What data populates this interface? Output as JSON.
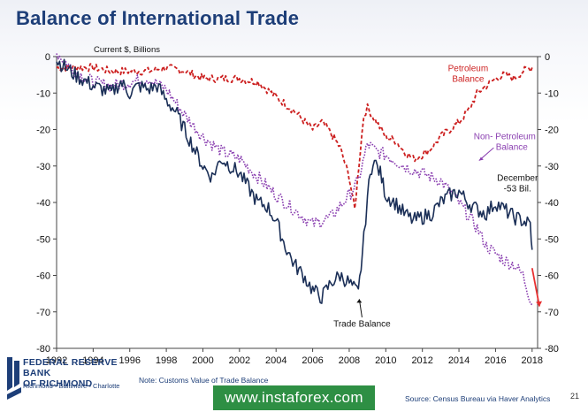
{
  "slide": {
    "title": "Balance of International Trade",
    "page_number": "21",
    "note": "Note: Customs Value of Trade Balance",
    "source": "Source: Census Bureau via Haver Analytics",
    "bank_name_line1": "FEDERAL RESERVE BANK",
    "bank_name_line2": "OF RICHMOND",
    "bank_cities": "Richmond • Baltimore • Charlotte",
    "watermark": "www.instaforex.com",
    "colors": {
      "title": "#1d3e78",
      "trade_balance": "#1b2f57",
      "petroleum": "#cc1f1f",
      "non_petroleum": "#8a3fb0",
      "arrow": "#e83030",
      "watermark_bg": "#2e8f44"
    }
  },
  "chart_data": {
    "type": "line",
    "ylabel": "Current $, Billions",
    "xlim": [
      1992,
      2018.3
    ],
    "ylim": [
      -80,
      0
    ],
    "x_ticks": [
      1992,
      1994,
      1996,
      1998,
      2000,
      2002,
      2004,
      2006,
      2008,
      2010,
      2012,
      2014,
      2016,
      2018
    ],
    "y_ticks": [
      0,
      -10,
      -20,
      -30,
      -40,
      -50,
      -60,
      -70,
      -80
    ],
    "grid": false,
    "dual_y_axis": true,
    "series": [
      {
        "name": "Trade Balance",
        "style": "solid",
        "label": "Trade Balance",
        "points": [
          [
            1992,
            -1
          ],
          [
            1993,
            -5
          ],
          [
            1994,
            -8
          ],
          [
            1995,
            -10
          ],
          [
            1995.5,
            -7
          ],
          [
            1996,
            -10
          ],
          [
            1996.5,
            -8
          ],
          [
            1997,
            -9
          ],
          [
            1997.5,
            -8
          ],
          [
            1998,
            -12
          ],
          [
            1998.5,
            -15
          ],
          [
            1999,
            -20
          ],
          [
            1999.5,
            -25
          ],
          [
            2000,
            -30
          ],
          [
            2000.5,
            -33
          ],
          [
            2001,
            -28
          ],
          [
            2001.5,
            -30
          ],
          [
            2002,
            -32
          ],
          [
            2002.5,
            -36
          ],
          [
            2003,
            -40
          ],
          [
            2003.5,
            -41
          ],
          [
            2004,
            -45
          ],
          [
            2004.5,
            -52
          ],
          [
            2005,
            -57
          ],
          [
            2005.5,
            -60
          ],
          [
            2006,
            -64
          ],
          [
            2006.5,
            -66
          ],
          [
            2007,
            -62
          ],
          [
            2007.5,
            -60
          ],
          [
            2008,
            -62
          ],
          [
            2008.5,
            -65
          ],
          [
            2008.8,
            -50
          ],
          [
            2009,
            -38
          ],
          [
            2009.3,
            -28
          ],
          [
            2009.7,
            -32
          ],
          [
            2010,
            -38
          ],
          [
            2010.5,
            -40
          ],
          [
            2011,
            -43
          ],
          [
            2011.5,
            -45
          ],
          [
            2012,
            -44
          ],
          [
            2012.5,
            -43
          ],
          [
            2013,
            -40
          ],
          [
            2013.5,
            -38
          ],
          [
            2014,
            -37
          ],
          [
            2014.5,
            -40
          ],
          [
            2015,
            -42
          ],
          [
            2015.5,
            -43
          ],
          [
            2016,
            -40
          ],
          [
            2016.5,
            -42
          ],
          [
            2017,
            -44
          ],
          [
            2017.5,
            -45
          ],
          [
            2017.9,
            -46
          ],
          [
            2018,
            -53
          ]
        ]
      },
      {
        "name": "Petroleum Balance",
        "style": "dashed",
        "label": "Petroleum Balance",
        "points": [
          [
            1992,
            -3
          ],
          [
            1993,
            -3
          ],
          [
            1994,
            -3
          ],
          [
            1995,
            -4
          ],
          [
            1996,
            -4
          ],
          [
            1997,
            -4
          ],
          [
            1998,
            -3
          ],
          [
            1999,
            -4
          ],
          [
            2000,
            -6
          ],
          [
            2001,
            -6
          ],
          [
            2002,
            -6
          ],
          [
            2003,
            -7
          ],
          [
            2004,
            -11
          ],
          [
            2005,
            -15
          ],
          [
            2006,
            -20
          ],
          [
            2006.5,
            -18
          ],
          [
            2007,
            -21
          ],
          [
            2007.5,
            -25
          ],
          [
            2008,
            -33
          ],
          [
            2008.3,
            -42
          ],
          [
            2008.6,
            -26
          ],
          [
            2008.8,
            -16
          ],
          [
            2009,
            -14
          ],
          [
            2009.5,
            -18
          ],
          [
            2010,
            -22
          ],
          [
            2010.5,
            -23
          ],
          [
            2011,
            -26
          ],
          [
            2011.5,
            -28
          ],
          [
            2012,
            -27
          ],
          [
            2012.5,
            -25
          ],
          [
            2013,
            -22
          ],
          [
            2013.5,
            -20
          ],
          [
            2014,
            -18
          ],
          [
            2014.5,
            -15
          ],
          [
            2015,
            -10
          ],
          [
            2015.5,
            -8
          ],
          [
            2016,
            -6
          ],
          [
            2016.5,
            -5
          ],
          [
            2017,
            -6
          ],
          [
            2017.5,
            -4
          ],
          [
            2018,
            -3
          ]
        ]
      },
      {
        "name": "Non- Petroleum Balance",
        "style": "dotted",
        "label": "Non- Petroleum Balance",
        "points": [
          [
            1992,
            1
          ],
          [
            1993,
            -4
          ],
          [
            1994,
            -7
          ],
          [
            1995,
            -8
          ],
          [
            1996,
            -7
          ],
          [
            1997,
            -6
          ],
          [
            1998,
            -9
          ],
          [
            1999,
            -16
          ],
          [
            2000,
            -22
          ],
          [
            2001,
            -26
          ],
          [
            2002,
            -28
          ],
          [
            2003,
            -33
          ],
          [
            2004,
            -38
          ],
          [
            2005,
            -42
          ],
          [
            2006,
            -46
          ],
          [
            2007,
            -44
          ],
          [
            2008,
            -38
          ],
          [
            2008.5,
            -34
          ],
          [
            2009,
            -24
          ],
          [
            2009.5,
            -26
          ],
          [
            2010,
            -27
          ],
          [
            2011,
            -30
          ],
          [
            2012,
            -32
          ],
          [
            2013,
            -34
          ],
          [
            2014,
            -40
          ],
          [
            2015,
            -47
          ],
          [
            2015.5,
            -52
          ],
          [
            2016,
            -54
          ],
          [
            2016.5,
            -56
          ],
          [
            2017,
            -57
          ],
          [
            2017.5,
            -60
          ],
          [
            2018,
            -68
          ]
        ]
      }
    ],
    "annotations": [
      {
        "text": "Trade Balance",
        "x": 2008.7,
        "y": -74
      },
      {
        "text": "Petroleum Balance",
        "x": 2014.5,
        "y": -4
      },
      {
        "text": "Non- Petroleum Balance",
        "x": 2016.5,
        "y": -26
      },
      {
        "text": "December -53 Bil.",
        "x": 2017.2,
        "y": -36.5
      }
    ]
  }
}
